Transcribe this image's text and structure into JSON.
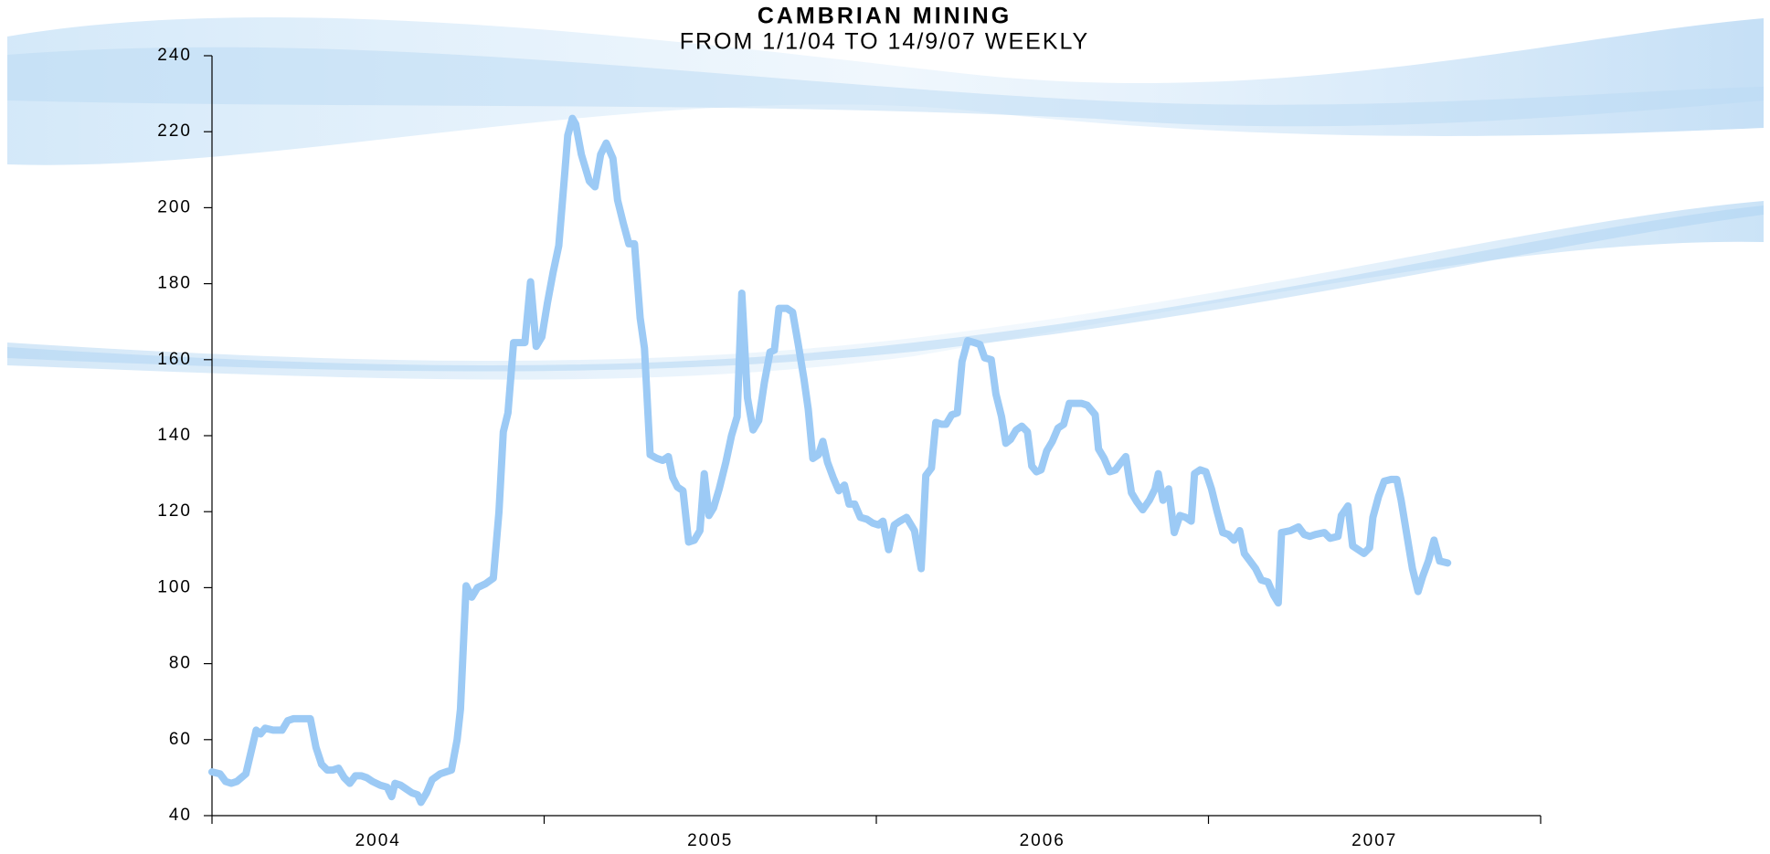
{
  "chart_data": {
    "type": "line",
    "title": "CAMBRIAN MINING",
    "subtitle": "FROM 1/1/04 TO 14/9/07 WEEKLY",
    "color": "#9ccaf5",
    "x": [
      2004.0,
      2004.024,
      2004.041,
      2004.058,
      2004.075,
      2004.102,
      2004.133,
      2004.146,
      2004.16,
      2004.184,
      2004.211,
      2004.228,
      2004.245,
      2004.279,
      2004.296,
      2004.313,
      2004.33,
      2004.347,
      2004.364,
      2004.381,
      2004.398,
      2004.415,
      2004.432,
      2004.449,
      2004.466,
      2004.483,
      2004.507,
      2004.527,
      2004.541,
      2004.551,
      2004.568,
      2004.585,
      2004.602,
      2004.619,
      2004.629,
      2004.646,
      2004.663,
      2004.687,
      2004.721,
      2004.738,
      2004.748,
      2004.765,
      2004.782,
      2004.799,
      2004.823,
      2004.847,
      2004.864,
      2004.877,
      2004.891,
      2004.908,
      2004.925,
      2004.942,
      2004.959,
      2004.976,
      2004.993,
      2005.01,
      2005.027,
      2005.044,
      2005.061,
      2005.071,
      2005.085,
      2005.095,
      2005.112,
      2005.136,
      2005.153,
      2005.17,
      2005.187,
      2005.207,
      2005.221,
      2005.238,
      2005.255,
      2005.272,
      2005.289,
      2005.302,
      2005.319,
      2005.34,
      2005.357,
      2005.374,
      2005.387,
      2005.401,
      2005.418,
      2005.435,
      2005.452,
      2005.469,
      2005.482,
      2005.496,
      2005.51,
      2005.527,
      2005.547,
      2005.564,
      2005.581,
      2005.595,
      2005.612,
      2005.629,
      2005.646,
      2005.663,
      2005.68,
      2005.693,
      2005.707,
      2005.731,
      2005.748,
      2005.765,
      2005.782,
      2005.795,
      2005.809,
      2005.826,
      2005.839,
      2005.853,
      2005.87,
      2005.887,
      2005.904,
      2005.918,
      2005.935,
      2005.952,
      2005.972,
      2005.989,
      2006.006,
      2006.02,
      2006.037,
      2006.054,
      2006.071,
      2006.091,
      2006.115,
      2006.135,
      2006.149,
      2006.166,
      2006.179,
      2006.196,
      2006.21,
      2006.227,
      2006.244,
      2006.258,
      2006.275,
      2006.295,
      2006.312,
      2006.326,
      2006.346,
      2006.36,
      2006.377,
      2006.39,
      2006.404,
      2006.421,
      2006.438,
      2006.455,
      2006.468,
      2006.482,
      2006.496,
      2006.513,
      2006.53,
      2006.547,
      2006.564,
      2006.581,
      2006.598,
      2006.618,
      2006.635,
      2006.659,
      2006.669,
      2006.686,
      2006.703,
      2006.72,
      2006.737,
      2006.751,
      2006.768,
      2006.785,
      2006.802,
      2006.822,
      2006.839,
      2006.849,
      2006.863,
      2006.88,
      2006.897,
      2006.914,
      2006.931,
      2006.948,
      2006.958,
      2006.975,
      2006.992,
      2007.009,
      2007.026,
      2007.043,
      2007.06,
      2007.077,
      2007.094,
      2007.108,
      2007.125,
      2007.142,
      2007.159,
      2007.179,
      2007.196,
      2007.21,
      2007.22,
      2007.247,
      2007.271,
      2007.288,
      2007.305,
      2007.322,
      2007.349,
      2007.366,
      2007.39,
      2007.4,
      2007.42,
      2007.434,
      2007.451,
      2007.468,
      2007.485,
      2007.495,
      2007.512,
      2007.529,
      2007.55,
      2007.567,
      2007.58,
      2007.597,
      2007.614,
      2007.631,
      2007.645,
      2007.662,
      2007.679,
      2007.696,
      2007.72
    ],
    "values": [
      51.5,
      51,
      49,
      48.5,
      49,
      51,
      62.5,
      61.5,
      63,
      62.5,
      62.5,
      65,
      65.5,
      65.5,
      65.5,
      58,
      53.5,
      52,
      52,
      52.5,
      50,
      48.5,
      50.5,
      50.5,
      50,
      49,
      48,
      47.5,
      45,
      48.5,
      48,
      47,
      46,
      45.5,
      43.5,
      46,
      49.5,
      51,
      52,
      60,
      68,
      100.5,
      97.5,
      100,
      101,
      102.5,
      120,
      141,
      146,
      164.5,
      164.5,
      164.5,
      180.5,
      163.5,
      166,
      175,
      183,
      190,
      208,
      219,
      223.5,
      222,
      214,
      207,
      205.5,
      214,
      217,
      213,
      202,
      196,
      190.5,
      190.5,
      171,
      163,
      135,
      134,
      133.5,
      134.5,
      129,
      126.5,
      125.5,
      112,
      112.5,
      115,
      130,
      119,
      121,
      126,
      133,
      140,
      145,
      177.5,
      150,
      141.5,
      144,
      154,
      162,
      162.5,
      173.5,
      173.5,
      172.5,
      164,
      155,
      147,
      134,
      135,
      138.5,
      133,
      129,
      125.5,
      127,
      122,
      122,
      118.5,
      118,
      117,
      116.5,
      117.5,
      110,
      116.5,
      117.5,
      118.5,
      115,
      105,
      129.5,
      131.5,
      143.5,
      143,
      143,
      145.5,
      146,
      159.5,
      165,
      164.5,
      164,
      160.5,
      160,
      151,
      145,
      138,
      139,
      141.5,
      142.5,
      141,
      132,
      130.5,
      131,
      136,
      138.5,
      142,
      143,
      148.5,
      148.5,
      148.5,
      148,
      145.5,
      136.5,
      134,
      130.5,
      131,
      133,
      134.5,
      125,
      122.5,
      120.5,
      123,
      126,
      130,
      123,
      126,
      114.5,
      119,
      118.5,
      117.5,
      130,
      131,
      130.5,
      126,
      120,
      114.5,
      114,
      112.5,
      115,
      109,
      107,
      105,
      102,
      101.5,
      98,
      96,
      114.5,
      115,
      116,
      114,
      113.5,
      114,
      114.5,
      113,
      113.5,
      119,
      121.5,
      111,
      110,
      109,
      110.5,
      118.5,
      124,
      128,
      128.5,
      128.5,
      123,
      114,
      105,
      99,
      103,
      107,
      112.5,
      107,
      106.5
    ],
    "xlim": [
      2004,
      2008
    ],
    "xticks": [
      {
        "value": 2004.5,
        "label": "2004"
      },
      {
        "value": 2005.5,
        "label": "2005"
      },
      {
        "value": 2006.5,
        "label": "2006"
      },
      {
        "value": 2007.5,
        "label": "2007"
      }
    ],
    "xminorticks": [
      2004,
      2005,
      2006,
      2007,
      2008
    ],
    "ylim": [
      40,
      240
    ],
    "yticks": [
      40,
      60,
      80,
      100,
      120,
      140,
      160,
      180,
      200,
      220,
      240
    ],
    "grid": false
  }
}
